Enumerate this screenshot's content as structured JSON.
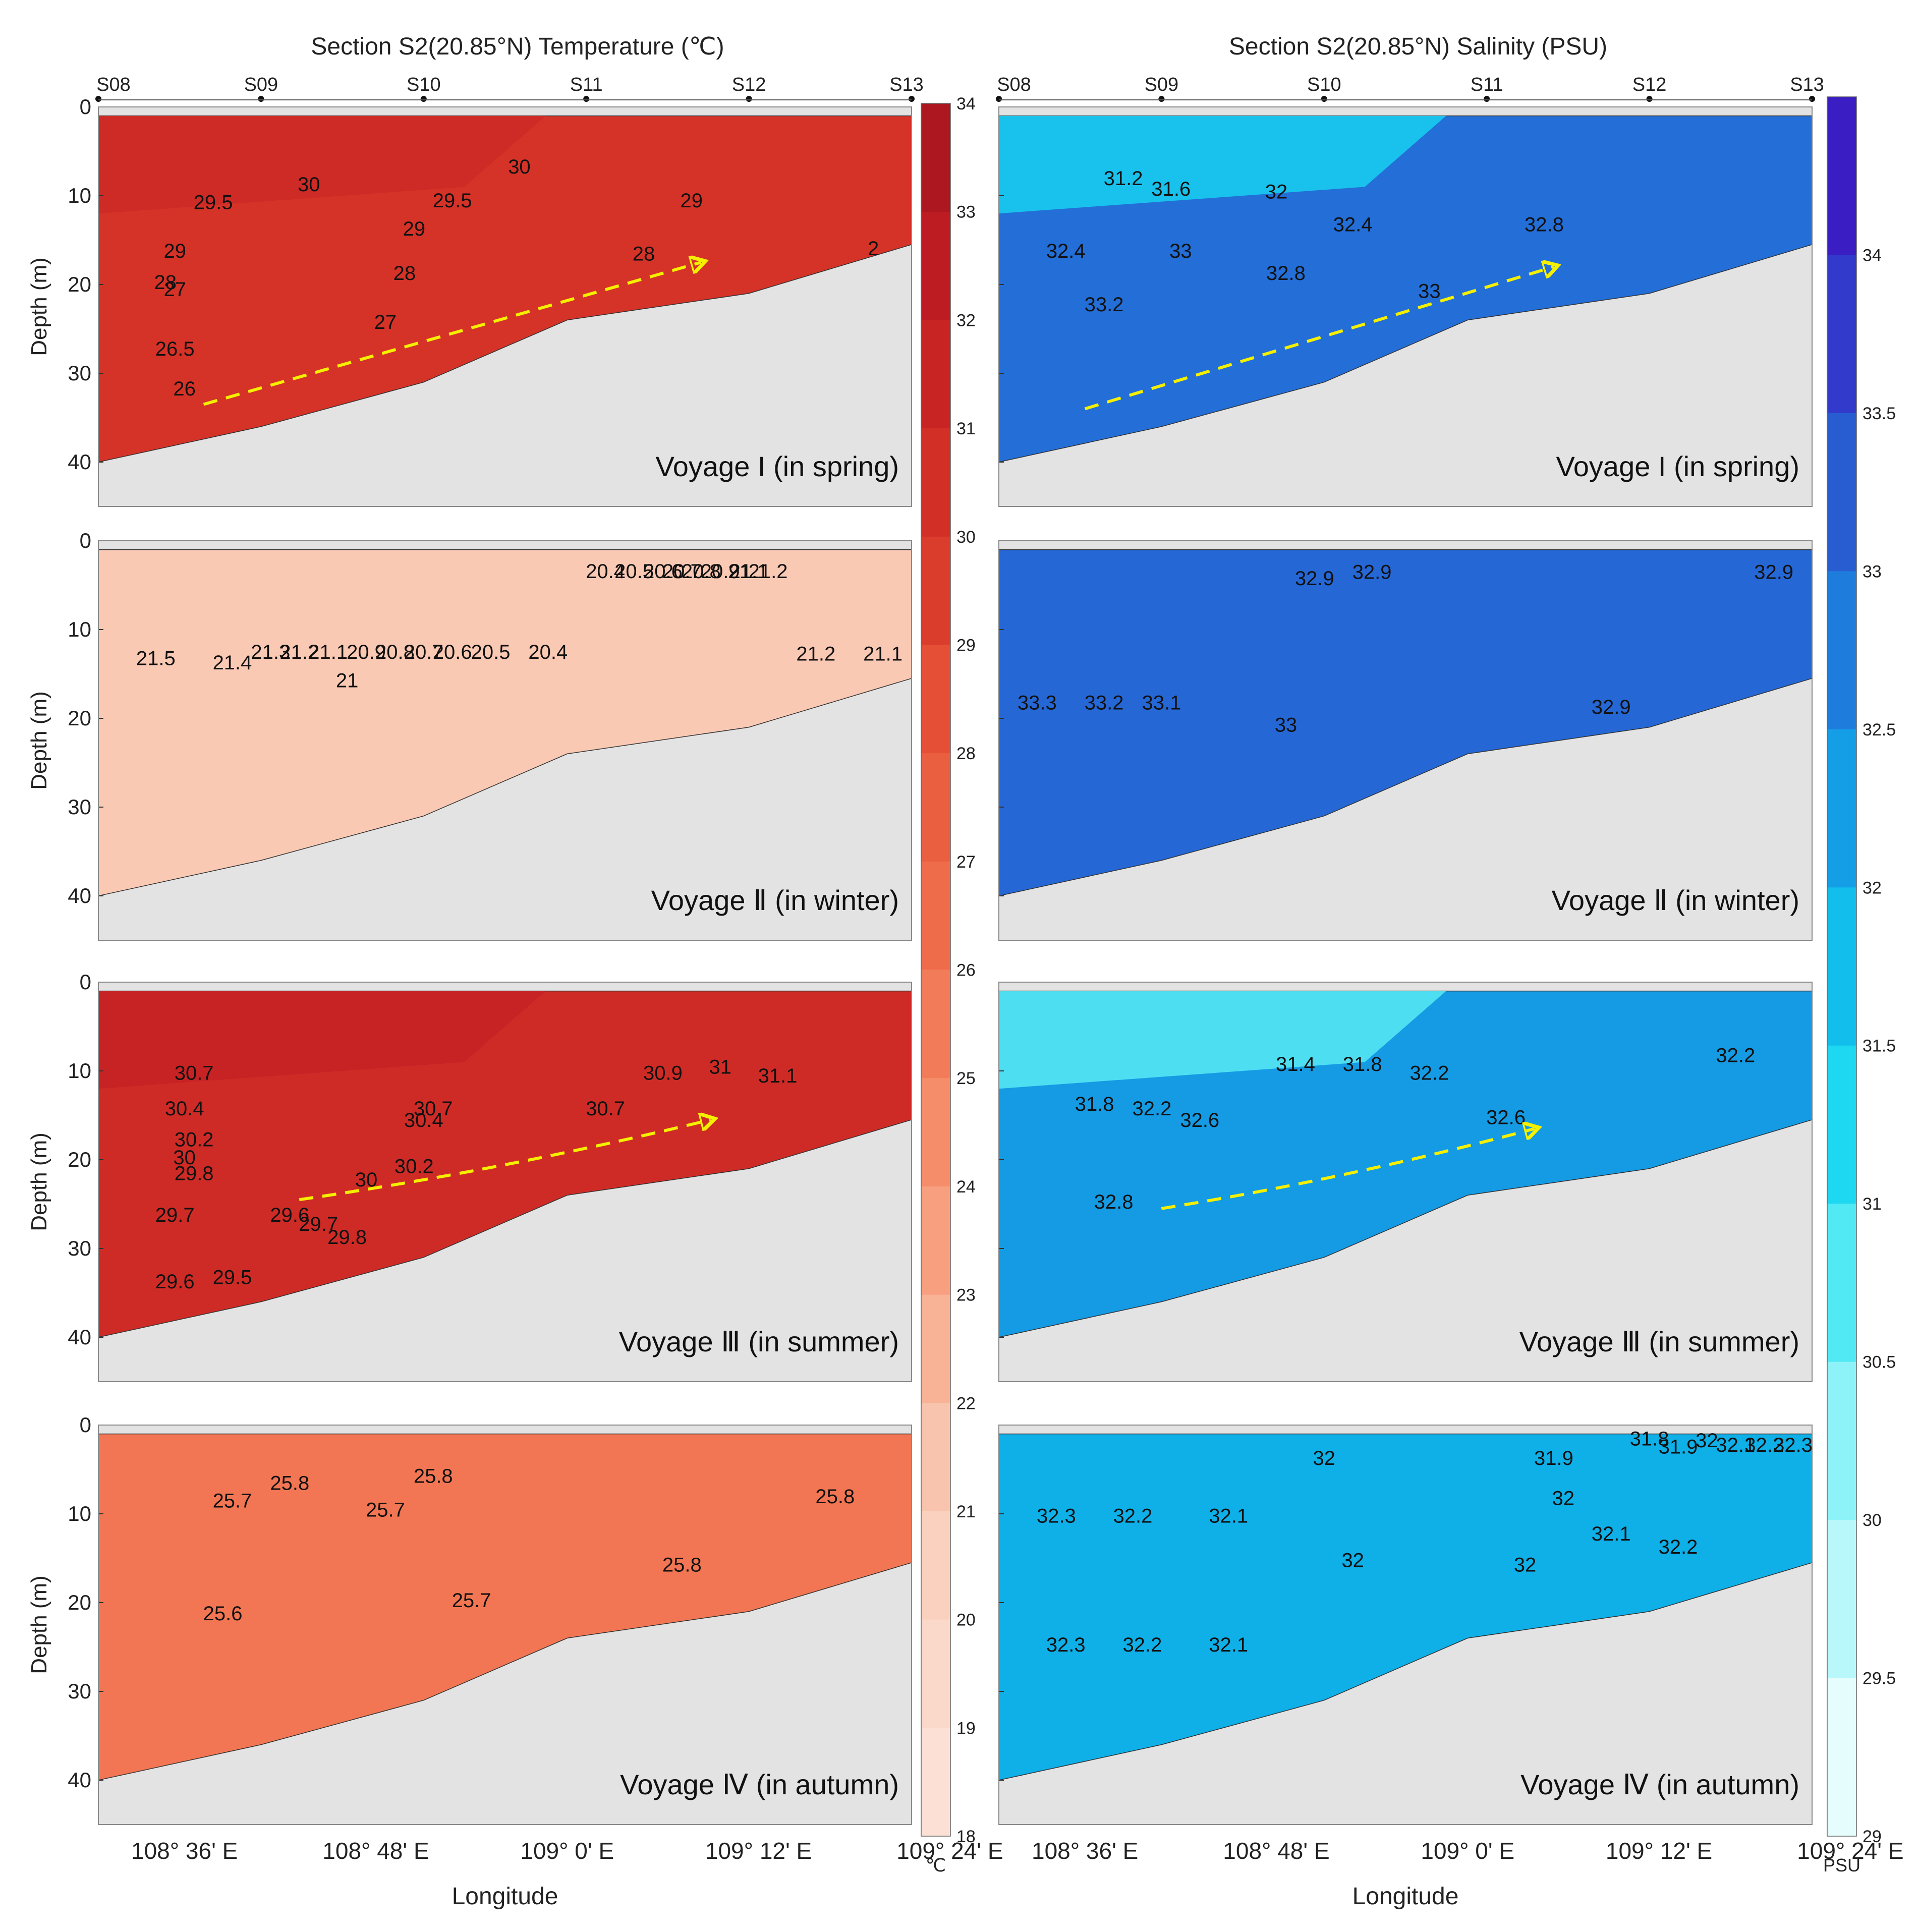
{
  "chart_data": [
    {
      "type": "contour",
      "variable": "temperature",
      "title": "Section S2(20.85°N) Temperature (℃)",
      "xlabel": "Longitude",
      "ylabel": "Depth (m)",
      "stations": [
        "S08",
        "S09",
        "S10",
        "S11",
        "S12",
        "S13"
      ],
      "station_lon": [
        108.51,
        108.68,
        108.85,
        109.02,
        109.19,
        109.36
      ],
      "x_ticks": [
        "108° 36' E",
        "108° 48' E",
        "109° 0' E",
        "109° 12' E",
        "109° 24' E"
      ],
      "x_tick_lon": [
        108.6,
        108.8,
        109.0,
        109.2,
        109.4
      ],
      "xlim": [
        108.51,
        109.36
      ],
      "y_ticks": [
        0,
        10,
        20,
        30,
        40
      ],
      "ylim": [
        0,
        45
      ],
      "y_inverted": true,
      "seabed": {
        "lon": [
          108.51,
          108.68,
          108.85,
          109.0,
          109.19,
          109.36
        ],
        "depth": [
          40,
          36,
          31,
          24,
          21,
          15.5
        ]
      },
      "colorbar": {
        "min": 18,
        "max": 34,
        "step": 1,
        "labels": [
          18,
          19,
          20,
          21,
          22,
          23,
          24,
          25,
          26,
          27,
          28,
          29,
          30,
          31,
          32,
          33,
          34
        ],
        "unit": "℃"
      },
      "panels": [
        {
          "voyage": "Voyage I (in spring)",
          "contour_labels": [
            {
              "text": "29.5",
              "lon": 108.63,
              "depth": 11.5
            },
            {
              "text": "30",
              "lon": 108.73,
              "depth": 9.5
            },
            {
              "text": "30",
              "lon": 108.95,
              "depth": 7.5
            },
            {
              "text": "29.5",
              "lon": 108.88,
              "depth": 11.3
            },
            {
              "text": "29",
              "lon": 109.13,
              "depth": 11.3
            },
            {
              "text": "29",
              "lon": 108.84,
              "depth": 14.5
            },
            {
              "text": "29",
              "lon": 108.59,
              "depth": 17
            },
            {
              "text": "28",
              "lon": 108.58,
              "depth": 20.5
            },
            {
              "text": "27",
              "lon": 108.59,
              "depth": 21.3
            },
            {
              "text": "28",
              "lon": 108.83,
              "depth": 19.5
            },
            {
              "text": "28",
              "lon": 109.08,
              "depth": 17.3
            },
            {
              "text": "27",
              "lon": 108.81,
              "depth": 25
            },
            {
              "text": "26.5",
              "lon": 108.59,
              "depth": 28
            },
            {
              "text": "26",
              "lon": 108.6,
              "depth": 32.5
            },
            {
              "text": "2",
              "lon": 109.32,
              "depth": 16.7
            }
          ],
          "arrow": {
            "lon": [
              108.62,
              109.14
            ],
            "depth": [
              33.5,
              17.5
            ]
          }
        },
        {
          "voyage": "Voyage Ⅱ (in winter)",
          "contour_labels": [
            {
              "text": "21.5",
              "lon": 108.57,
              "depth": 14
            },
            {
              "text": "21.4",
              "lon": 108.65,
              "depth": 14.5
            },
            {
              "text": "21.3",
              "lon": 108.69,
              "depth": 13.3
            },
            {
              "text": "21.2",
              "lon": 108.72,
              "depth": 13.3
            },
            {
              "text": "21.1",
              "lon": 108.75,
              "depth": 13.3
            },
            {
              "text": "21",
              "lon": 108.77,
              "depth": 16.5
            },
            {
              "text": "20.9",
              "lon": 108.79,
              "depth": 13.3
            },
            {
              "text": "20.8",
              "lon": 108.82,
              "depth": 13.3
            },
            {
              "text": "20.7",
              "lon": 108.85,
              "depth": 13.3
            },
            {
              "text": "20.6",
              "lon": 108.88,
              "depth": 13.3
            },
            {
              "text": "20.5",
              "lon": 108.92,
              "depth": 13.3
            },
            {
              "text": "20.4",
              "lon": 108.98,
              "depth": 13.3
            },
            {
              "text": "20.4",
              "lon": 109.04,
              "depth": 4.2
            },
            {
              "text": "20.5",
              "lon": 109.07,
              "depth": 4.2
            },
            {
              "text": "20.6",
              "lon": 109.1,
              "depth": 4.2
            },
            {
              "text": "20.7",
              "lon": 109.12,
              "depth": 4.2
            },
            {
              "text": "20.8",
              "lon": 109.14,
              "depth": 4.2
            },
            {
              "text": "20.9",
              "lon": 109.16,
              "depth": 4.2
            },
            {
              "text": "21",
              "lon": 109.18,
              "depth": 4.2
            },
            {
              "text": "21.1",
              "lon": 109.19,
              "depth": 4.2
            },
            {
              "text": "21.2",
              "lon": 109.21,
              "depth": 4.2
            },
            {
              "text": "21.2",
              "lon": 109.26,
              "depth": 13.5
            },
            {
              "text": "21.1",
              "lon": 109.33,
              "depth": 13.5
            }
          ]
        },
        {
          "voyage": "Voyage Ⅲ (in summer)",
          "contour_labels": [
            {
              "text": "30.7",
              "lon": 108.61,
              "depth": 11
            },
            {
              "text": "30.4",
              "lon": 108.6,
              "depth": 15
            },
            {
              "text": "30.7",
              "lon": 108.86,
              "depth": 15
            },
            {
              "text": "30.4",
              "lon": 108.85,
              "depth": 16.3
            },
            {
              "text": "30.2",
              "lon": 108.61,
              "depth": 18.5
            },
            {
              "text": "30",
              "lon": 108.6,
              "depth": 20.5
            },
            {
              "text": "29.8",
              "lon": 108.61,
              "depth": 22.3
            },
            {
              "text": "30.2",
              "lon": 108.84,
              "depth": 21.5
            },
            {
              "text": "30",
              "lon": 108.79,
              "depth": 23
            },
            {
              "text": "29.7",
              "lon": 108.59,
              "depth": 27
            },
            {
              "text": "29.6",
              "lon": 108.71,
              "depth": 27
            },
            {
              "text": "29.7",
              "lon": 108.74,
              "depth": 28
            },
            {
              "text": "29.8",
              "lon": 108.77,
              "depth": 29.5
            },
            {
              "text": "29.6",
              "lon": 108.59,
              "depth": 34.5
            },
            {
              "text": "29.5",
              "lon": 108.65,
              "depth": 34
            },
            {
              "text": "30.9",
              "lon": 109.1,
              "depth": 11
            },
            {
              "text": "31",
              "lon": 109.16,
              "depth": 10.3
            },
            {
              "text": "31.1",
              "lon": 109.22,
              "depth": 11.3
            },
            {
              "text": "30.7",
              "lon": 109.04,
              "depth": 15
            }
          ],
          "arrow": {
            "lon": [
              108.72,
              109.15
            ],
            "depth": [
              24.5,
              15.5
            ]
          }
        },
        {
          "voyage": "Voyage Ⅳ (in autumn)",
          "contour_labels": [
            {
              "text": "25.8",
              "lon": 108.71,
              "depth": 7.3
            },
            {
              "text": "25.8",
              "lon": 108.86,
              "depth": 6.5
            },
            {
              "text": "25.7",
              "lon": 108.65,
              "depth": 9.3
            },
            {
              "text": "25.7",
              "lon": 108.81,
              "depth": 10.3
            },
            {
              "text": "25.8",
              "lon": 109.28,
              "depth": 8.8
            },
            {
              "text": "25.6",
              "lon": 108.64,
              "depth": 22
            },
            {
              "text": "25.7",
              "lon": 108.9,
              "depth": 20.5
            },
            {
              "text": "25.8",
              "lon": 109.12,
              "depth": 16.5
            }
          ]
        }
      ]
    },
    {
      "type": "contour",
      "variable": "salinity",
      "title": "Section S2(20.85°N) Salinity (PSU)",
      "xlabel": "Longitude",
      "ylabel": "",
      "stations": [
        "S08",
        "S09",
        "S10",
        "S11",
        "S12",
        "S13"
      ],
      "station_lon": [
        108.51,
        108.68,
        108.85,
        109.02,
        109.19,
        109.36
      ],
      "x_ticks": [
        "108° 36' E",
        "108° 48' E",
        "109° 0' E",
        "109° 12' E",
        "109° 24' E"
      ],
      "x_tick_lon": [
        108.6,
        108.8,
        109.0,
        109.2,
        109.4
      ],
      "xlim": [
        108.51,
        109.36
      ],
      "y_ticks": [
        0,
        10,
        20,
        30,
        40
      ],
      "ylim": [
        0,
        45
      ],
      "y_inverted": true,
      "seabed": {
        "lon": [
          108.51,
          108.68,
          108.85,
          109.0,
          109.19,
          109.36
        ],
        "depth": [
          40,
          36,
          31,
          24,
          21,
          15.5
        ]
      },
      "colorbar": {
        "min": 29,
        "max": 34.5,
        "step": 0.5,
        "labels": [
          29,
          29.5,
          30,
          30.5,
          31,
          31.5,
          32,
          32.5,
          33,
          33.5,
          34
        ],
        "unit": "PSU"
      },
      "panels": [
        {
          "voyage": "Voyage I (in spring)",
          "contour_labels": [
            {
              "text": "31.2",
              "lon": 108.64,
              "depth": 8.8
            },
            {
              "text": "31.6",
              "lon": 108.69,
              "depth": 10
            },
            {
              "text": "32",
              "lon": 108.8,
              "depth": 10.3
            },
            {
              "text": "32.4",
              "lon": 108.88,
              "depth": 14
            },
            {
              "text": "32.8",
              "lon": 109.08,
              "depth": 14
            },
            {
              "text": "32.4",
              "lon": 108.58,
              "depth": 17
            },
            {
              "text": "33",
              "lon": 108.7,
              "depth": 17
            },
            {
              "text": "32.8",
              "lon": 108.81,
              "depth": 19.5
            },
            {
              "text": "33",
              "lon": 108.96,
              "depth": 21.5
            },
            {
              "text": "33.2",
              "lon": 108.62,
              "depth": 23
            }
          ],
          "arrow": {
            "lon": [
              108.6,
              109.09
            ],
            "depth": [
              34,
              18
            ]
          }
        },
        {
          "voyage": "Voyage Ⅱ (in winter)",
          "contour_labels": [
            {
              "text": "32.9",
              "lon": 108.84,
              "depth": 5
            },
            {
              "text": "32.9",
              "lon": 108.9,
              "depth": 4.3
            },
            {
              "text": "32.9",
              "lon": 109.32,
              "depth": 4.3
            },
            {
              "text": "33.3",
              "lon": 108.55,
              "depth": 19
            },
            {
              "text": "33.2",
              "lon": 108.62,
              "depth": 19
            },
            {
              "text": "33.1",
              "lon": 108.68,
              "depth": 19
            },
            {
              "text": "33",
              "lon": 108.81,
              "depth": 21.5
            },
            {
              "text": "32.9",
              "lon": 109.15,
              "depth": 19.5
            }
          ]
        },
        {
          "voyage": "Voyage Ⅲ (in summer)",
          "contour_labels": [
            {
              "text": "31.4",
              "lon": 108.82,
              "depth": 10
            },
            {
              "text": "31.8",
              "lon": 108.89,
              "depth": 10
            },
            {
              "text": "32.2",
              "lon": 108.96,
              "depth": 11
            },
            {
              "text": "32.2",
              "lon": 109.28,
              "depth": 9
            },
            {
              "text": "31.8",
              "lon": 108.61,
              "depth": 14.5
            },
            {
              "text": "32.2",
              "lon": 108.67,
              "depth": 15
            },
            {
              "text": "32.6",
              "lon": 108.72,
              "depth": 16.3
            },
            {
              "text": "32.6",
              "lon": 109.04,
              "depth": 16
            },
            {
              "text": "32.8",
              "lon": 108.63,
              "depth": 25.5
            }
          ],
          "arrow": {
            "lon": [
              108.68,
              109.07
            ],
            "depth": [
              25.5,
              16.5
            ]
          }
        },
        {
          "voyage": "Voyage Ⅳ (in autumn)",
          "contour_labels": [
            {
              "text": "31.8",
              "lon": 109.19,
              "depth": 2.3
            },
            {
              "text": "31.9",
              "lon": 109.22,
              "depth": 3.2
            },
            {
              "text": "32",
              "lon": 109.25,
              "depth": 2.5
            },
            {
              "text": "32.1",
              "lon": 109.28,
              "depth": 3
            },
            {
              "text": "32.2",
              "lon": 109.31,
              "depth": 3
            },
            {
              "text": "32.3",
              "lon": 109.34,
              "depth": 3
            },
            {
              "text": "31.9",
              "lon": 109.09,
              "depth": 4.5
            },
            {
              "text": "32",
              "lon": 108.85,
              "depth": 4.5
            },
            {
              "text": "32",
              "lon": 109.1,
              "depth": 9
            },
            {
              "text": "32.3",
              "lon": 108.57,
              "depth": 11
            },
            {
              "text": "32.2",
              "lon": 108.65,
              "depth": 11
            },
            {
              "text": "32.1",
              "lon": 108.75,
              "depth": 11
            },
            {
              "text": "32.1",
              "lon": 109.15,
              "depth": 13
            },
            {
              "text": "32",
              "lon": 108.88,
              "depth": 16
            },
            {
              "text": "32",
              "lon": 109.06,
              "depth": 16.5
            },
            {
              "text": "32.2",
              "lon": 109.22,
              "depth": 14.5
            },
            {
              "text": "32.3",
              "lon": 108.58,
              "depth": 25.5
            },
            {
              "text": "32.2",
              "lon": 108.66,
              "depth": 25.5
            },
            {
              "text": "32.1",
              "lon": 108.75,
              "depth": 25.5
            }
          ]
        }
      ]
    }
  ]
}
